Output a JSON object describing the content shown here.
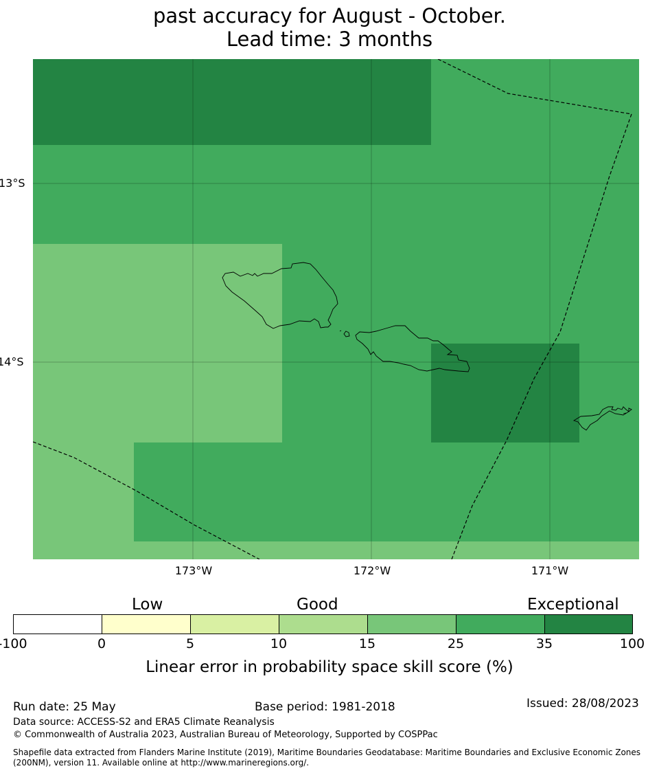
{
  "title": {
    "line2": "past accuracy for August - October.",
    "line3": "Lead time: 3 months"
  },
  "map": {
    "lat_labels": [
      "13°S",
      "14°S"
    ],
    "lon_labels": [
      "173°W",
      "172°W",
      "171°W"
    ],
    "cell_colors": {
      "exceptional": "#238443",
      "band_25_35": "#41ab5d",
      "band_15_25": "#78c679"
    }
  },
  "colorbar": {
    "categories": [
      "Low",
      "Good",
      "Exceptional"
    ],
    "ticks": [
      "-100",
      "0",
      "5",
      "10",
      "15",
      "25",
      "35",
      "100"
    ],
    "colors": [
      "#ffffff",
      "#ffffcc",
      "#d9f0a3",
      "#addd8e",
      "#78c679",
      "#41ab5d",
      "#238443"
    ],
    "label": "Linear error in probability space skill score (%)"
  },
  "footer": {
    "run_date": "Run date: 25 May",
    "base_period": "Base period: 1981-2018",
    "issued": "Issued: 28/08/2023",
    "data_source": "Data source: ACCESS-S2 and ERA5 Climate Reanalysis",
    "copyright": "© Commonwealth of Australia 2023, Australian Bureau of Meteorology, Supported by COSPPac",
    "shapefile_line1": "Shapefile data extracted from Flanders Marine Institute (2019), Maritime Boundaries Geodatabase: Maritime Boundaries and Exclusive Economic Zones",
    "shapefile_line2": "(200NM), version 11. Available online at http://www.marineregions.org/."
  }
}
